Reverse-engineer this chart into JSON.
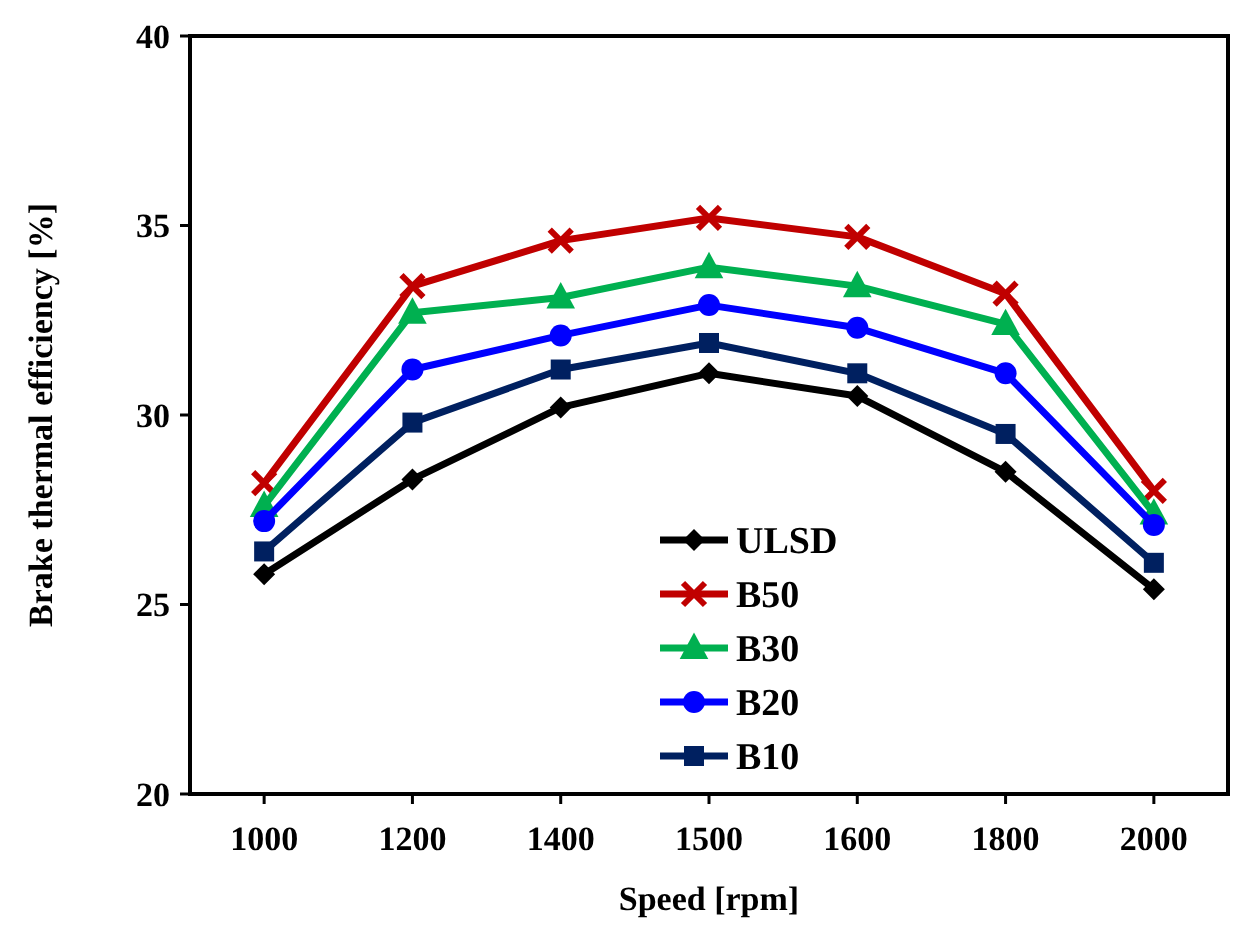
{
  "chart_data": {
    "type": "line",
    "xlabel": "Speed [rpm]",
    "ylabel": "Brake thermal efficiency [%]",
    "categories": [
      "1000",
      "1200",
      "1400",
      "1500",
      "1600",
      "1800",
      "2000"
    ],
    "series": [
      {
        "name": "ULSD",
        "color": "#000000",
        "marker": "diamond",
        "values": [
          25.8,
          28.3,
          30.2,
          31.1,
          30.5,
          28.5,
          25.4
        ]
      },
      {
        "name": "B50",
        "color": "#c00000",
        "marker": "cross",
        "values": [
          28.2,
          33.4,
          34.6,
          35.2,
          34.7,
          33.2,
          28.0
        ]
      },
      {
        "name": "B30",
        "color": "#00b050",
        "marker": "triangle",
        "values": [
          27.6,
          32.7,
          33.1,
          33.9,
          33.4,
          32.4,
          27.4
        ]
      },
      {
        "name": "B20",
        "color": "#0000ff",
        "marker": "circle",
        "values": [
          27.2,
          31.2,
          32.1,
          32.9,
          32.3,
          31.1,
          27.1
        ]
      },
      {
        "name": "B10",
        "color": "#002060",
        "marker": "square",
        "values": [
          26.4,
          29.8,
          31.2,
          31.9,
          31.1,
          29.5,
          26.1
        ]
      }
    ],
    "ylim": [
      20,
      40
    ],
    "yticks": [
      20,
      25,
      30,
      35,
      40
    ],
    "grid": false,
    "legend": "center",
    "line_style": "solid"
  }
}
